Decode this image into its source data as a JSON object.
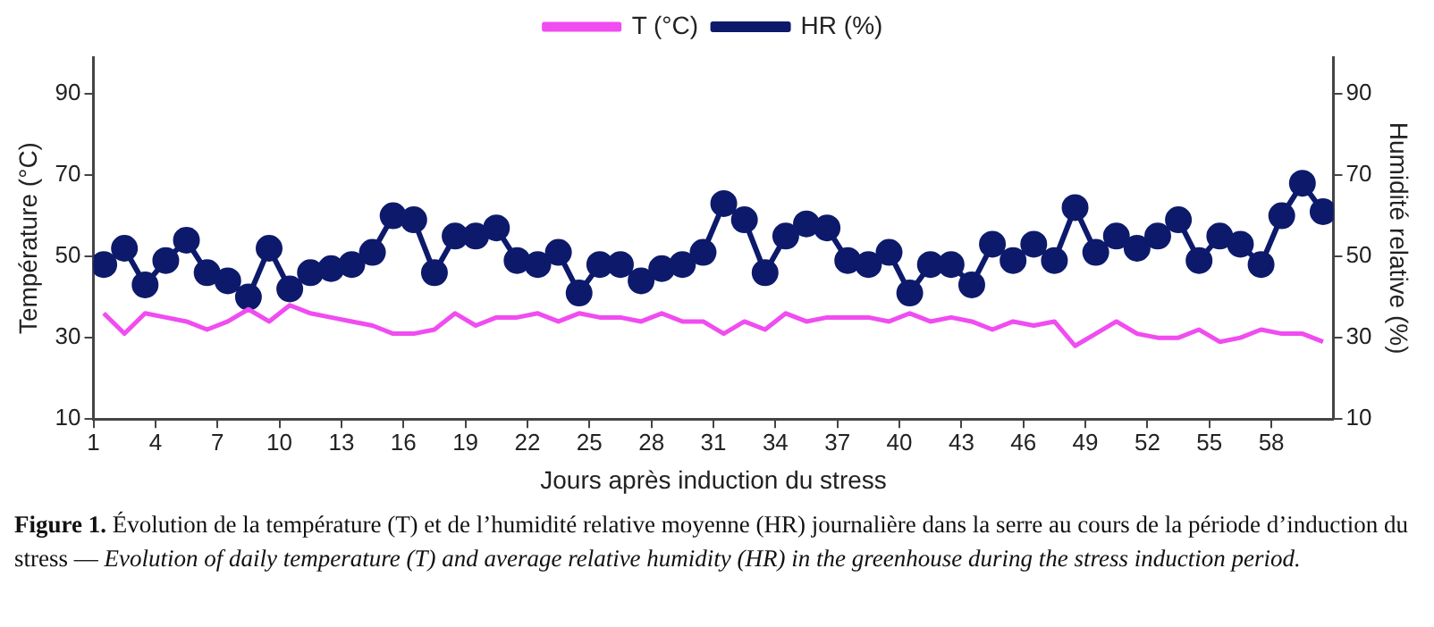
{
  "chart_data": {
    "type": "line",
    "xlabel": "Jours après induction du stress",
    "ylabel": "Température (°C)",
    "y2label": "Humidité relative (%)",
    "x": [
      1.5,
      2.5,
      3.5,
      4.5,
      5.5,
      6.5,
      7.5,
      8.5,
      9.5,
      10.5,
      11.5,
      12.5,
      13.5,
      14.5,
      15.5,
      16.5,
      17.5,
      18.5,
      19.5,
      20.5,
      21.5,
      22.5,
      23.5,
      24.5,
      25.5,
      26.5,
      27.5,
      28.5,
      29.5,
      30.5,
      31.5,
      32.5,
      33.5,
      34.5,
      35.5,
      36.5,
      37.5,
      38.5,
      39.5,
      40.5,
      41.5,
      42.5,
      43.5,
      44.5,
      45.5,
      46.5,
      47.5,
      48.5,
      49.5,
      50.5,
      51.5,
      52.5,
      53.5,
      54.5,
      55.5,
      56.5,
      57.5,
      58.5,
      59.5,
      60.5
    ],
    "xlim": [
      1,
      61
    ],
    "xticks": [
      1,
      4,
      7,
      10,
      13,
      16,
      19,
      22,
      25,
      28,
      31,
      34,
      37,
      40,
      43,
      46,
      49,
      52,
      55,
      58
    ],
    "ylim": [
      10,
      99
    ],
    "yticks": [
      10,
      30,
      50,
      70,
      90
    ],
    "y2lim": [
      10,
      99
    ],
    "y2ticks": [
      10,
      30,
      50,
      70,
      90
    ],
    "grid": false,
    "legend": "top",
    "line_style": "solid",
    "series": [
      {
        "name": "T (°C)",
        "color": "#f04cf0",
        "marker": "none",
        "values": [
          36,
          31,
          36,
          35,
          34,
          32,
          34,
          37,
          34,
          38,
          36,
          35,
          34,
          33,
          31,
          31,
          32,
          36,
          33,
          35,
          35,
          36,
          34,
          36,
          35,
          35,
          34,
          36,
          34,
          34,
          31,
          34,
          32,
          36,
          34,
          35,
          35,
          35,
          34,
          36,
          34,
          35,
          34,
          32,
          34,
          33,
          34,
          28,
          31,
          34,
          31,
          30,
          30,
          32,
          29,
          30,
          32,
          31,
          31,
          29
        ]
      },
      {
        "name": "HR (%)",
        "color": "#0d1a6b",
        "marker": "circle",
        "axis": "y2",
        "values": [
          48,
          52,
          43,
          49,
          54,
          46,
          44,
          40,
          52,
          42,
          46,
          47,
          48,
          51,
          60,
          59,
          46,
          55,
          55,
          57,
          49,
          48,
          51,
          41,
          48,
          48,
          44,
          47,
          48,
          51,
          63,
          59,
          46,
          55,
          58,
          57,
          49,
          48,
          51,
          41,
          48,
          48,
          43,
          53,
          49,
          53,
          49,
          62,
          51,
          55,
          52,
          55,
          59,
          49,
          55,
          53,
          48,
          60,
          68,
          61
        ]
      }
    ],
    "annotations": [
      "Figure 1.",
      "Évolution de la température (T) et de l’humidité relative moyenne (HR) journalière dans la serre au cours de la période d’induction du stress —",
      "Evolution of daily temperature (T) and average relative humidity (HR) in the greenhouse during the stress induction period."
    ]
  }
}
